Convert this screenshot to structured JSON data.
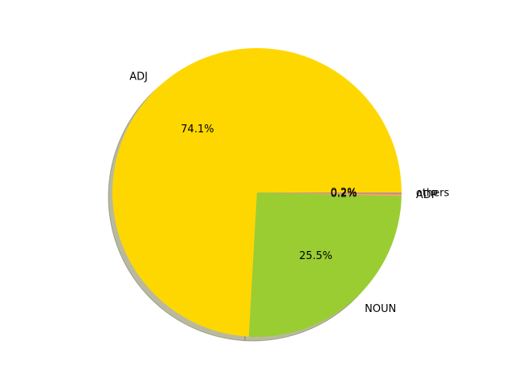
{
  "chart_data": {
    "type": "pie",
    "shadow": true,
    "start_angle_deg": 0,
    "direction": "counterclockwise",
    "slices": [
      {
        "label": "ADJ",
        "value": 74.1,
        "pct_label": "74.1%",
        "color": "#FFD700"
      },
      {
        "label": "NOUN",
        "value": 25.5,
        "pct_label": "25.5%",
        "color": "#9ACD32"
      },
      {
        "label": "ADP",
        "value": 0.2,
        "pct_label": "0.2%",
        "color": "#F4A460"
      },
      {
        "label": "others",
        "value": 0.2,
        "pct_label": "0.2%",
        "color": "#BC8F8F"
      }
    ]
  }
}
